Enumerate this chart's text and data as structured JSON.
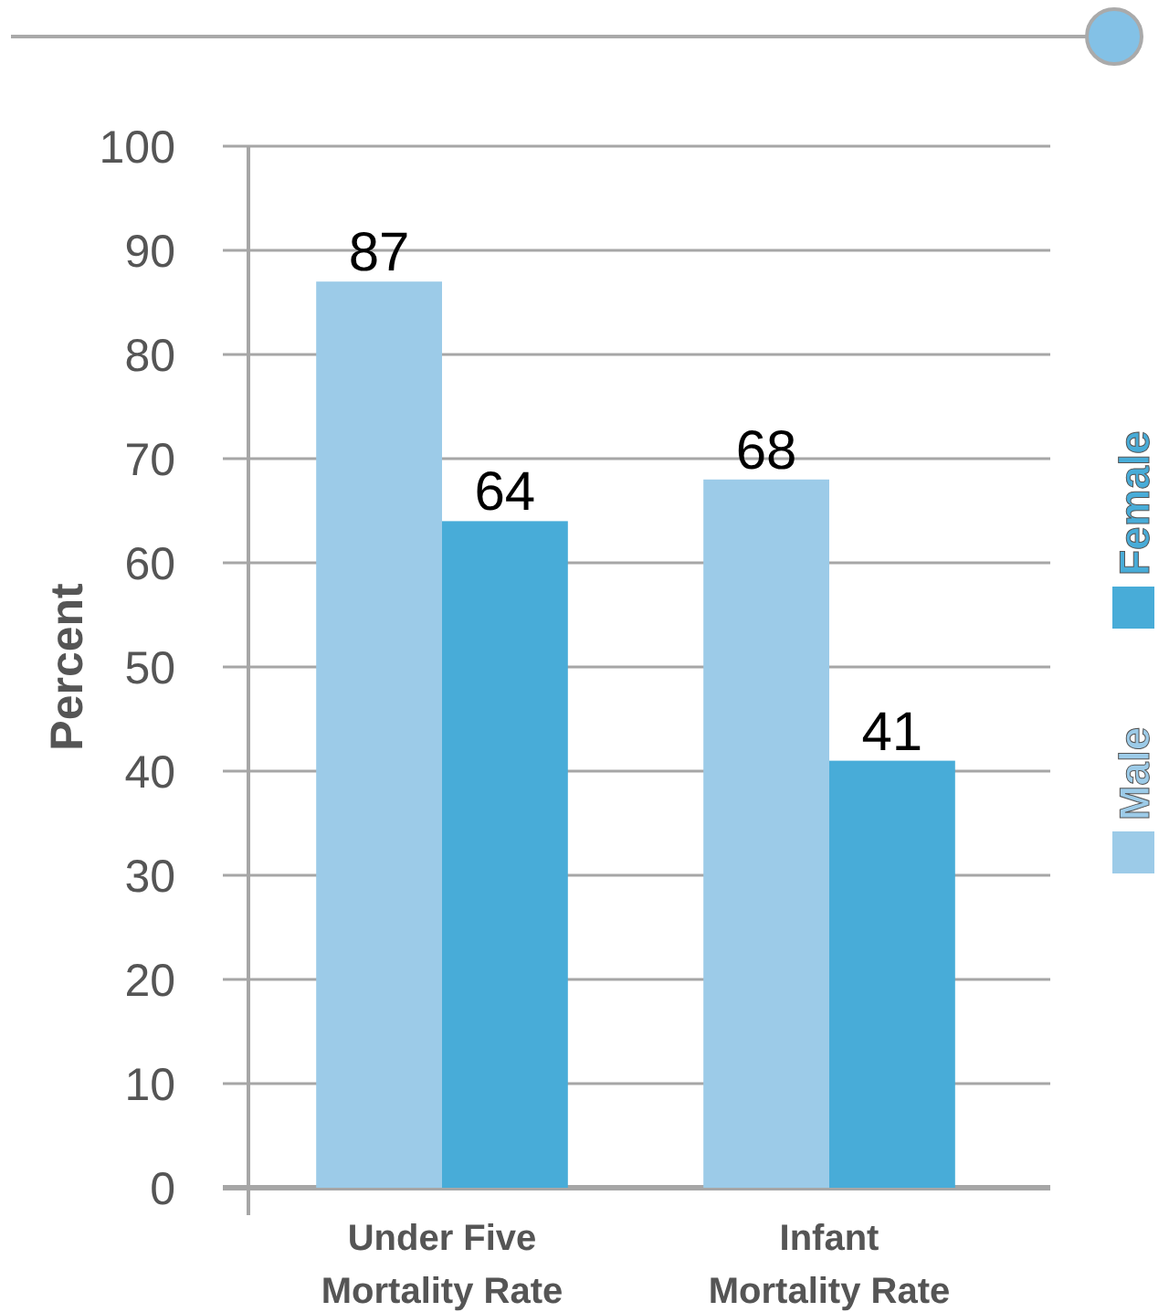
{
  "chart_data": {
    "type": "bar",
    "ylabel": "Percent",
    "categories": [
      "Under Five\nMortality Rate",
      "Infant\nMortality Rate"
    ],
    "series": [
      {
        "name": "Male",
        "color": "#9ccbe8",
        "values": [
          87,
          68
        ]
      },
      {
        "name": "Female",
        "color": "#48acd8",
        "values": [
          64,
          41
        ]
      }
    ],
    "ylim": [
      0,
      100
    ],
    "yticks": [
      0,
      10,
      20,
      30,
      40,
      50,
      60,
      70,
      80,
      90,
      100
    ],
    "grid": "y",
    "legend": "right",
    "data_labels": true
  }
}
